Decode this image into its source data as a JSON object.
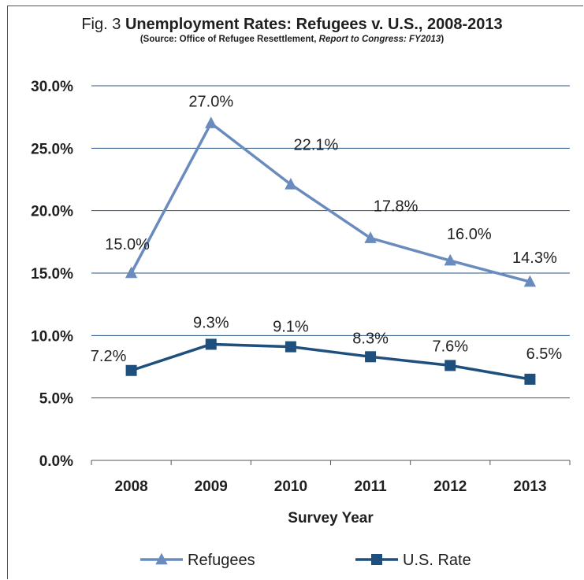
{
  "figure": {
    "fig_label": "Fig. 3",
    "title": "Unemployment Rates:  Refugees v. U.S., 2008-2013",
    "subtitle_prefix": "(Source:  Office of Refugee Resettlement, ",
    "subtitle_em": "Report to Congress:  FY2013",
    "subtitle_suffix": ")"
  },
  "chart_data": {
    "type": "line",
    "x": [
      "2008",
      "2009",
      "2010",
      "2011",
      "2012",
      "2013"
    ],
    "xlabel": "Survey Year",
    "ylabel": "",
    "ylim": [
      0,
      30
    ],
    "yticks": [
      0,
      5,
      10,
      15,
      20,
      25,
      30
    ],
    "ytick_labels": [
      "0.0%",
      "5.0%",
      "10.0%",
      "15.0%",
      "20.0%",
      "25.0%",
      "30.0%"
    ],
    "grid": true,
    "legend_position": "bottom",
    "series": [
      {
        "name": "Refugees",
        "marker": "triangle",
        "color": "#6a8bbd",
        "values": [
          15.0,
          27.0,
          22.1,
          17.8,
          16.0,
          14.3
        ],
        "labels": [
          "15.0%",
          "27.0%",
          "22.1%",
          "17.8%",
          "16.0%",
          "14.3%"
        ]
      },
      {
        "name": "U.S. Rate",
        "marker": "square",
        "color": "#1e4f7d",
        "values": [
          7.2,
          9.3,
          9.1,
          8.3,
          7.6,
          6.5
        ],
        "labels": [
          "7.2%",
          "9.3%",
          "9.1%",
          "8.3%",
          "7.6%",
          "6.5%"
        ]
      }
    ]
  }
}
